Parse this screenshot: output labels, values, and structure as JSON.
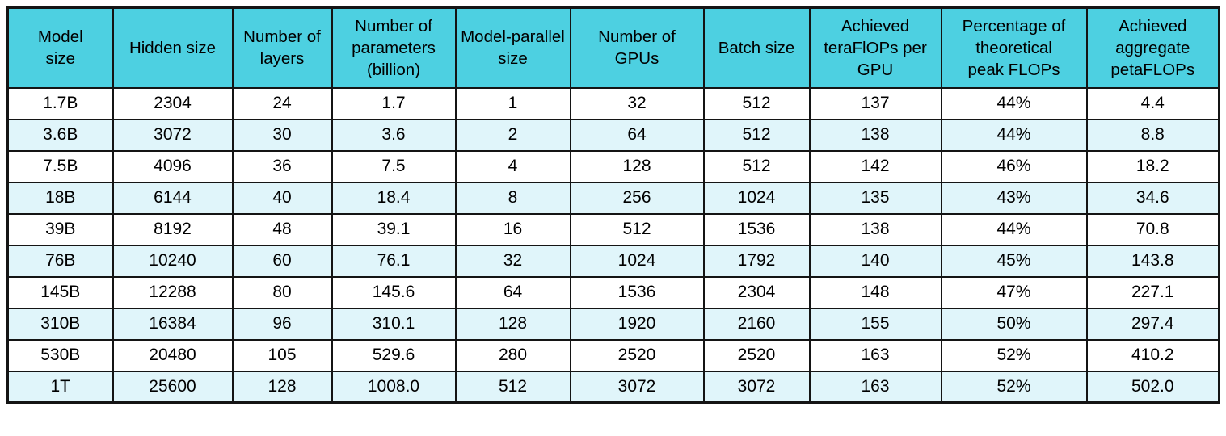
{
  "colors": {
    "header_bg": "#4dd0e1",
    "row_odd_bg": "#ffffff",
    "row_even_bg": "#e0f5fa",
    "border": "#141414",
    "text": "#000000"
  },
  "chart_data": {
    "type": "table",
    "title": "",
    "columns": [
      "Model\nsize",
      "Hidden size",
      "Number of\nlayers",
      "Number of\nparameters\n(billion)",
      "Model-parallel\nsize",
      "Number of\nGPUs",
      "Batch size",
      "Achieved\nteraFlOPs per\nGPU",
      "Percentage of\ntheoretical\npeak FLOPs",
      "Achieved\naggregate\npetaFLOPs"
    ],
    "rows": [
      [
        "1.7B",
        "2304",
        "24",
        "1.7",
        "1",
        "32",
        "512",
        "137",
        "44%",
        "4.4"
      ],
      [
        "3.6B",
        "3072",
        "30",
        "3.6",
        "2",
        "64",
        "512",
        "138",
        "44%",
        "8.8"
      ],
      [
        "7.5B",
        "4096",
        "36",
        "7.5",
        "4",
        "128",
        "512",
        "142",
        "46%",
        "18.2"
      ],
      [
        "18B",
        "6144",
        "40",
        "18.4",
        "8",
        "256",
        "1024",
        "135",
        "43%",
        "34.6"
      ],
      [
        "39B",
        "8192",
        "48",
        "39.1",
        "16",
        "512",
        "1536",
        "138",
        "44%",
        "70.8"
      ],
      [
        "76B",
        "10240",
        "60",
        "76.1",
        "32",
        "1024",
        "1792",
        "140",
        "45%",
        "143.8"
      ],
      [
        "145B",
        "12288",
        "80",
        "145.6",
        "64",
        "1536",
        "2304",
        "148",
        "47%",
        "227.1"
      ],
      [
        "310B",
        "16384",
        "96",
        "310.1",
        "128",
        "1920",
        "2160",
        "155",
        "50%",
        "297.4"
      ],
      [
        "530B",
        "20480",
        "105",
        "529.6",
        "280",
        "2520",
        "2520",
        "163",
        "52%",
        "410.2"
      ],
      [
        "1T",
        "25600",
        "128",
        "1008.0",
        "512",
        "3072",
        "3072",
        "163",
        "52%",
        "502.0"
      ]
    ]
  }
}
